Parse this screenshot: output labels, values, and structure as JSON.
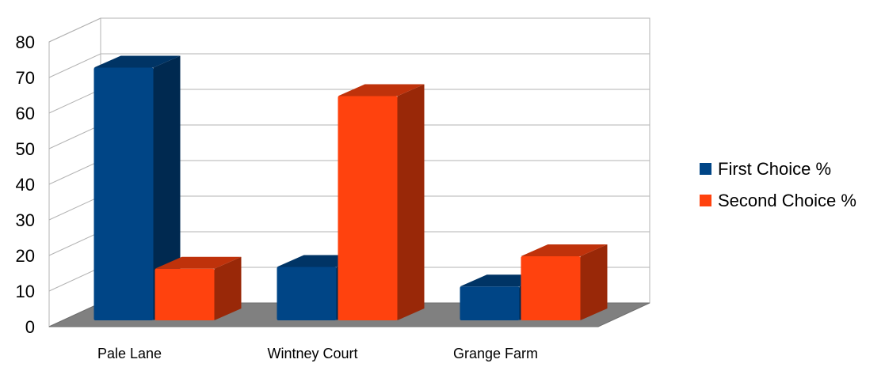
{
  "chart_data": {
    "type": "bar",
    "categories": [
      "Pale Lane",
      "Wintney Court",
      "Grange Farm"
    ],
    "series": [
      {
        "name": "First Choice %",
        "values": [
          71,
          15,
          9.5
        ],
        "color": "#004586"
      },
      {
        "name": "Second Choice %",
        "values": [
          14.5,
          63,
          18
        ],
        "color": "#ff420e"
      }
    ],
    "ylim": [
      0,
      80
    ],
    "yticks": [
      "0",
      "10",
      "20",
      "30",
      "40",
      "50",
      "60",
      "70",
      "80"
    ],
    "grid": true,
    "legend_position": "right",
    "style": "3d-bar",
    "floor_color": "#808080"
  }
}
